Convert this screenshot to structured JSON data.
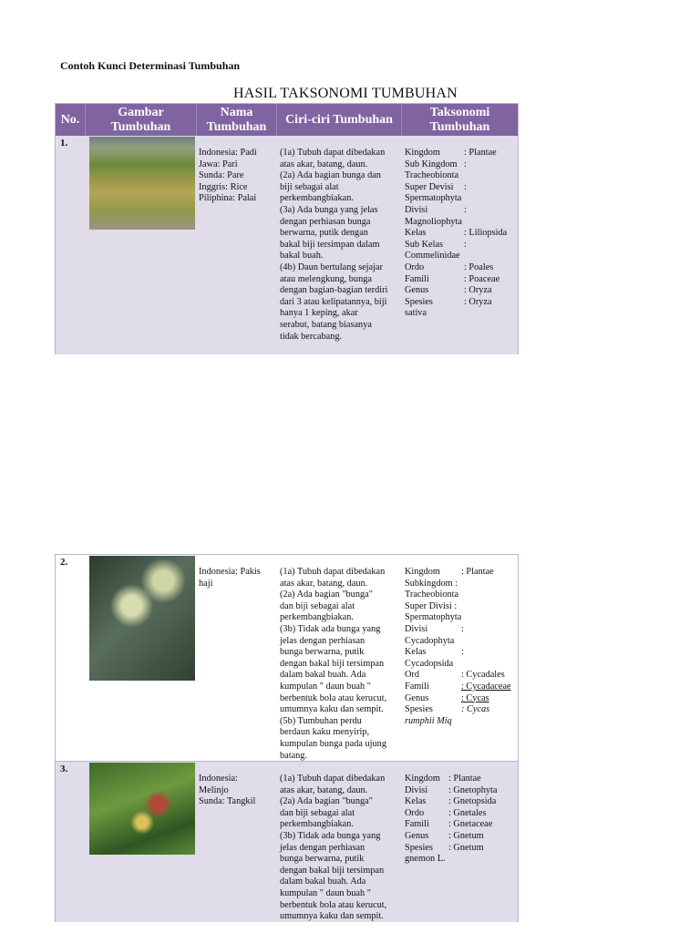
{
  "doc_title": "Contoh Kunci Determinasi Tumbuhan",
  "table_title": "HASIL TAKSONOMI TUMBUHAN",
  "colors": {
    "header": "#8064a2",
    "row_shade": "#e0dcea"
  },
  "headers": {
    "no": "No.",
    "gambar": "Gambar Tumbuhan",
    "nama": "Nama Tumbuhan",
    "ciri": "Ciri-ciri Tumbuhan",
    "taksonomi": "Taksonomi Tumbuhan"
  },
  "rows": [
    {
      "no": "1.",
      "image": "rice-plant-photo",
      "nama": [
        "Indonesia: Padi",
        "Jawa: Pari",
        "Sunda: Pare",
        "Inggris: Rice",
        "Piliphina: Palai"
      ],
      "ciri": [
        "(1a) Tubuh dapat dibedakan",
        "atas akar, batang, daun.",
        "(2a) Ada bagian bunga dan",
        "biji sebagai alat",
        "perkembangbiakan.",
        "(3a) Ada bunga yang jelas",
        "dengan perhiasan bunga",
        "berwarna, putik dengan",
        "bakal biji tersimpan dalam",
        "bakal buah.",
        "(4b) Daun bertulang sejajar",
        "atau melengkung, bunga",
        "dengan bagian-bagian terdiri",
        "dari 3 atau kelipatannya, biji",
        "hanya 1 keping, akar",
        "serabut, batang biasanya",
        "tidak bercabang."
      ],
      "taksonomi": [
        [
          "Kingdom",
          ": Plantae"
        ],
        [
          "Sub Kingdom",
          ":"
        ],
        [
          "Tracheobionta",
          ""
        ],
        [
          "Super Devisi",
          ":"
        ],
        [
          "Spermatophyta",
          ""
        ],
        [
          "Divisi",
          ":"
        ],
        [
          "Magnoliophyta",
          ""
        ],
        [
          "Kelas",
          ": Liliopsida"
        ],
        [
          "Sub Kelas",
          ":"
        ],
        [
          "Commelinidae",
          ""
        ],
        [
          "Ordo",
          ": Poales"
        ],
        [
          "Famili",
          ": Poaceae"
        ],
        [
          "Genus",
          ": Oryza"
        ],
        [
          "Spesies",
          ": Oryza"
        ],
        [
          "sativa",
          ""
        ]
      ]
    },
    {
      "no": "2.",
      "image": "cycas-plant-photo",
      "nama": [
        "Indonesia: Pakis",
        "haji"
      ],
      "ciri": [
        "(1a) Tubuh dapat dibedakan",
        "atas akar, batang, daun.",
        "(2a) Ada bagian \"bunga\"",
        "dan biji sebagai alat",
        "perkembangbiakan.",
        "(3b) Tidak ada bunga yang",
        "jelas dengan perhiasan",
        "bunga berwarna, putik",
        "dengan bakal biji tersimpan",
        "dalam bakal buah. Ada",
        "kumpulan \" daun buah \"",
        "berbentuk bola atau kerucut,",
        "umumnya kaku dan sempit.",
        "(5b) Tumbuhan perdu",
        "berdaun kaku menyirip,",
        "kumpulan bunga pada ujung",
        "batang."
      ],
      "taksonomi": [
        [
          "Kingdom",
          ": Plantae"
        ],
        [
          "Subkingdom :",
          ""
        ],
        [
          "Tracheobionta",
          ""
        ],
        [
          "Super Divisi :",
          ""
        ],
        [
          "Spermatophyta",
          ""
        ],
        [
          "Divisi",
          ":"
        ],
        [
          "Cycadophyta",
          ""
        ],
        [
          "Kelas",
          ":"
        ],
        [
          "Cycadopsida",
          ""
        ],
        [
          "Ord",
          ": Cycadales"
        ],
        [
          "Famili",
          ": Cycadaceae"
        ],
        [
          "Genus",
          ": Cycas"
        ],
        [
          "Spesies",
          ": Cycas"
        ],
        [
          "rumphii Miq",
          ""
        ]
      ]
    },
    {
      "no": "3.",
      "image": "melinjo-plant-photo",
      "nama": [
        "Indonesia:",
        "Melinjo",
        "Sunda: Tangkil"
      ],
      "ciri": [
        "(1a) Tubuh dapat dibedakan",
        "atas akar, batang, daun.",
        "(2a) Ada bagian \"bunga\"",
        "dan biji sebagai alat",
        "perkembangbiakan.",
        "(3b) Tidak ada bunga yang",
        "jelas dengan perhiasan",
        "bunga berwarna, putik",
        "dengan bakal biji tersimpan",
        "dalam bakal buah. Ada",
        "kumpulan \" daun buah \"",
        "berbentuk bola atau kerucut,",
        "umumnya kaku dan sempit."
      ],
      "taksonomi": [
        [
          "Kingdom",
          ": Plantae"
        ],
        [
          "Divisi",
          ": Gnetophyta"
        ],
        [
          "Kelas",
          ": Gnetopsida"
        ],
        [
          "Ordo",
          ": Gnetales"
        ],
        [
          "Famili",
          ": Gnetaceae"
        ],
        [
          "Genus",
          ": Gnetum"
        ],
        [
          "Spesies",
          ": Gnetum"
        ],
        [
          "gnemon L.",
          ""
        ]
      ]
    }
  ]
}
